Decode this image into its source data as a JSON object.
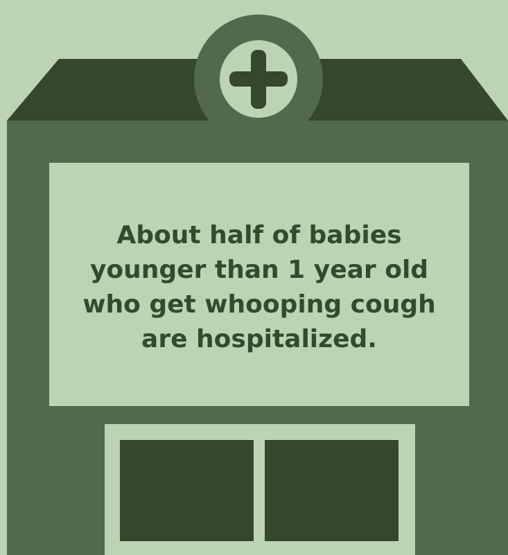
{
  "infographic": {
    "message": "About half of babies younger than 1 year old who get whooping cough are hospitalized.",
    "icon": "medical-cross-icon",
    "subject": "hospital-building-illustration"
  },
  "colors": {
    "background": "#bcd4b4",
    "building": "#52694d",
    "roof_and_windows": "#34482e",
    "text": "#344a2e"
  }
}
